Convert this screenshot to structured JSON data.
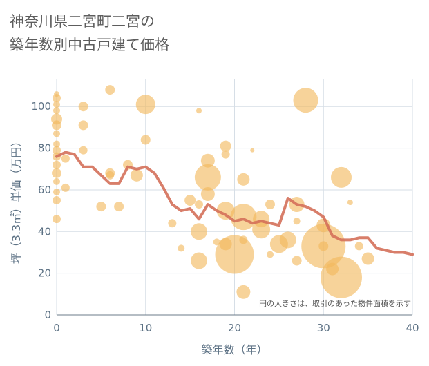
{
  "title_line1": "神奈川県二宮町二宮の",
  "title_line2": "築年数別中古戸建て価格",
  "chart_data": {
    "type": "scatter",
    "xlabel": "築年数（年）",
    "ylabel": "坪（3.3㎡）単価（万円）",
    "xlim": [
      0,
      40
    ],
    "ylim": [
      0,
      113
    ],
    "xticks": [
      0,
      10,
      20,
      30,
      40
    ],
    "yticks": [
      0,
      20,
      40,
      60,
      80,
      100
    ],
    "grid": true,
    "note": "円の大きさは、取引のあった物件面積を示す",
    "colors": {
      "bubble": "#f2b85c",
      "line": "#d4705a",
      "axis_text": "#5c7184",
      "grid": "#d6dee6"
    },
    "bubbles": [
      {
        "x": 0,
        "y": 106,
        "s": 4
      },
      {
        "x": 0,
        "y": 104,
        "s": 6
      },
      {
        "x": 0,
        "y": 101,
        "s": 5
      },
      {
        "x": 0,
        "y": 98,
        "s": 5
      },
      {
        "x": 0,
        "y": 94,
        "s": 8
      },
      {
        "x": 0,
        "y": 91,
        "s": 7
      },
      {
        "x": 0,
        "y": 87,
        "s": 5
      },
      {
        "x": 0,
        "y": 82,
        "s": 5
      },
      {
        "x": 0,
        "y": 79,
        "s": 6
      },
      {
        "x": 0,
        "y": 76,
        "s": 6
      },
      {
        "x": 0,
        "y": 72,
        "s": 6
      },
      {
        "x": 0,
        "y": 68,
        "s": 7
      },
      {
        "x": 0,
        "y": 64,
        "s": 5
      },
      {
        "x": 0,
        "y": 59,
        "s": 5
      },
      {
        "x": 0,
        "y": 55,
        "s": 6
      },
      {
        "x": 0,
        "y": 46,
        "s": 6
      },
      {
        "x": 1,
        "y": 75,
        "s": 6
      },
      {
        "x": 1,
        "y": 61,
        "s": 6
      },
      {
        "x": 3,
        "y": 100,
        "s": 7
      },
      {
        "x": 3,
        "y": 91,
        "s": 7
      },
      {
        "x": 3,
        "y": 79,
        "s": 6
      },
      {
        "x": 5,
        "y": 52,
        "s": 7
      },
      {
        "x": 6,
        "y": 108,
        "s": 7
      },
      {
        "x": 6,
        "y": 68,
        "s": 7
      },
      {
        "x": 6,
        "y": 67,
        "s": 6
      },
      {
        "x": 7,
        "y": 52,
        "s": 7
      },
      {
        "x": 8,
        "y": 72,
        "s": 7
      },
      {
        "x": 9,
        "y": 67,
        "s": 9
      },
      {
        "x": 10,
        "y": 101,
        "s": 14
      },
      {
        "x": 10,
        "y": 84,
        "s": 7
      },
      {
        "x": 13,
        "y": 44,
        "s": 6
      },
      {
        "x": 14,
        "y": 32,
        "s": 5
      },
      {
        "x": 15,
        "y": 55,
        "s": 8
      },
      {
        "x": 16,
        "y": 98,
        "s": 4
      },
      {
        "x": 16,
        "y": 53,
        "s": 6
      },
      {
        "x": 16,
        "y": 40,
        "s": 12
      },
      {
        "x": 16,
        "y": 26,
        "s": 12
      },
      {
        "x": 17,
        "y": 74,
        "s": 10
      },
      {
        "x": 17,
        "y": 66,
        "s": 19
      },
      {
        "x": 17,
        "y": 58,
        "s": 10
      },
      {
        "x": 18,
        "y": 35,
        "s": 5
      },
      {
        "x": 19,
        "y": 81,
        "s": 8
      },
      {
        "x": 19,
        "y": 77,
        "s": 6
      },
      {
        "x": 19,
        "y": 50,
        "s": 13
      },
      {
        "x": 19,
        "y": 34,
        "s": 9
      },
      {
        "x": 20,
        "y": 29,
        "s": 28
      },
      {
        "x": 21,
        "y": 65,
        "s": 9
      },
      {
        "x": 21,
        "y": 47,
        "s": 19
      },
      {
        "x": 21,
        "y": 36,
        "s": 6
      },
      {
        "x": 21,
        "y": 11,
        "s": 10
      },
      {
        "x": 22,
        "y": 79,
        "s": 3
      },
      {
        "x": 23,
        "y": 46,
        "s": 12
      },
      {
        "x": 23,
        "y": 41,
        "s": 13
      },
      {
        "x": 24,
        "y": 53,
        "s": 7
      },
      {
        "x": 24,
        "y": 29,
        "s": 5
      },
      {
        "x": 25,
        "y": 34,
        "s": 13
      },
      {
        "x": 26,
        "y": 36,
        "s": 12
      },
      {
        "x": 27,
        "y": 53,
        "s": 11
      },
      {
        "x": 27,
        "y": 45,
        "s": 5
      },
      {
        "x": 27,
        "y": 26,
        "s": 7
      },
      {
        "x": 28,
        "y": 103,
        "s": 18
      },
      {
        "x": 30,
        "y": 43,
        "s": 10
      },
      {
        "x": 30,
        "y": 33,
        "s": 32
      },
      {
        "x": 30,
        "y": 33,
        "s": 7
      },
      {
        "x": 31,
        "y": 22,
        "s": 9
      },
      {
        "x": 32,
        "y": 18,
        "s": 30
      },
      {
        "x": 32,
        "y": 66,
        "s": 15
      },
      {
        "x": 33,
        "y": 54,
        "s": 4
      },
      {
        "x": 34,
        "y": 33,
        "s": 6
      },
      {
        "x": 35,
        "y": 27,
        "s": 9
      }
    ],
    "line": [
      {
        "x": 0,
        "y": 76
      },
      {
        "x": 1,
        "y": 78
      },
      {
        "x": 2,
        "y": 77
      },
      {
        "x": 3,
        "y": 71
      },
      {
        "x": 4,
        "y": 71
      },
      {
        "x": 5,
        "y": 67
      },
      {
        "x": 6,
        "y": 63
      },
      {
        "x": 7,
        "y": 63
      },
      {
        "x": 8,
        "y": 71
      },
      {
        "x": 9,
        "y": 70
      },
      {
        "x": 10,
        "y": 71
      },
      {
        "x": 11,
        "y": 68
      },
      {
        "x": 12,
        "y": 61
      },
      {
        "x": 13,
        "y": 53
      },
      {
        "x": 14,
        "y": 50
      },
      {
        "x": 15,
        "y": 51
      },
      {
        "x": 16,
        "y": 46
      },
      {
        "x": 17,
        "y": 53
      },
      {
        "x": 18,
        "y": 50
      },
      {
        "x": 19,
        "y": 48
      },
      {
        "x": 20,
        "y": 45
      },
      {
        "x": 21,
        "y": 46
      },
      {
        "x": 22,
        "y": 44
      },
      {
        "x": 23,
        "y": 45
      },
      {
        "x": 24,
        "y": 44
      },
      {
        "x": 25,
        "y": 43
      },
      {
        "x": 26,
        "y": 56
      },
      {
        "x": 27,
        "y": 53
      },
      {
        "x": 28,
        "y": 52
      },
      {
        "x": 29,
        "y": 50
      },
      {
        "x": 30,
        "y": 47
      },
      {
        "x": 31,
        "y": 38
      },
      {
        "x": 32,
        "y": 36
      },
      {
        "x": 33,
        "y": 36
      },
      {
        "x": 34,
        "y": 37
      },
      {
        "x": 35,
        "y": 37
      },
      {
        "x": 36,
        "y": 32
      },
      {
        "x": 37,
        "y": 31
      },
      {
        "x": 38,
        "y": 30
      },
      {
        "x": 39,
        "y": 30
      },
      {
        "x": 40,
        "y": 29
      }
    ]
  }
}
